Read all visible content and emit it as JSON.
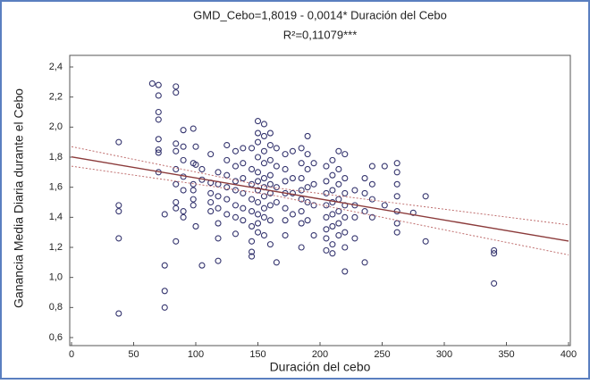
{
  "chart_data": {
    "type": "scatter",
    "title": "GMD_Cebo=1,8019 - 0,0014* Duración del Cebo",
    "subtitle": "R²=0,11079***",
    "x_label": "Duración del cebo",
    "y_label": "Ganancia Media Diaria durante el Cebo",
    "color": "#34346e",
    "fit_color": "#8b3a3a",
    "band_color": "#c07070",
    "xlim": [
      0,
      400
    ],
    "ylim": [
      0.6,
      2.4
    ],
    "xticks": [
      0,
      50,
      100,
      150,
      200,
      250,
      300,
      350,
      400
    ],
    "yticks": [
      {
        "value": 0.6,
        "label": "0,6"
      },
      {
        "value": 0.8,
        "label": "0,8"
      },
      {
        "value": 1.0,
        "label": "1,0"
      },
      {
        "value": 1.2,
        "label": "1,2"
      },
      {
        "value": 1.4,
        "label": "1,4"
      },
      {
        "value": 1.6,
        "label": "1,6"
      },
      {
        "value": 1.8,
        "label": "1,8"
      },
      {
        "value": 2.0,
        "label": "2,0"
      },
      {
        "value": 2.2,
        "label": "2,2"
      },
      {
        "value": 2.4,
        "label": "2,4"
      }
    ],
    "x": [
      38,
      38,
      38,
      38,
      38,
      65,
      70,
      70,
      70,
      70,
      70,
      70,
      70,
      70,
      75,
      75,
      75,
      75,
      84,
      84,
      84,
      84,
      84,
      84,
      84,
      84,
      84,
      90,
      90,
      90,
      90,
      90,
      90,
      90,
      98,
      98,
      98,
      98,
      98,
      98,
      100,
      100,
      100,
      105,
      105,
      105,
      112,
      112,
      112,
      112,
      112,
      118,
      118,
      118,
      118,
      118,
      118,
      118,
      125,
      125,
      125,
      125,
      125,
      125,
      132,
      132,
      132,
      132,
      132,
      132,
      132,
      138,
      138,
      138,
      138,
      138,
      138,
      145,
      145,
      145,
      145,
      145,
      145,
      145,
      145,
      145,
      150,
      150,
      150,
      150,
      150,
      150,
      150,
      150,
      150,
      150,
      150,
      155,
      155,
      155,
      155,
      155,
      155,
      155,
      155,
      155,
      155,
      160,
      160,
      160,
      160,
      160,
      160,
      160,
      160,
      160,
      165,
      165,
      165,
      165,
      165,
      172,
      172,
      172,
      172,
      172,
      172,
      172,
      178,
      178,
      178,
      178,
      185,
      185,
      185,
      185,
      185,
      185,
      185,
      185,
      190,
      190,
      190,
      190,
      190,
      190,
      195,
      195,
      195,
      195,
      205,
      205,
      205,
      205,
      205,
      205,
      205,
      205,
      210,
      210,
      210,
      210,
      210,
      210,
      210,
      210,
      215,
      215,
      215,
      215,
      215,
      215,
      215,
      220,
      220,
      220,
      220,
      220,
      220,
      220,
      220,
      228,
      228,
      228,
      228,
      236,
      236,
      236,
      236,
      242,
      242,
      242,
      242,
      252,
      252,
      262,
      262,
      262,
      262,
      262,
      262,
      262,
      275,
      285,
      285,
      340,
      340,
      340
    ],
    "values": [
      1.9,
      1.48,
      1.44,
      1.26,
      0.76,
      2.29,
      2.28,
      2.21,
      2.1,
      2.05,
      1.92,
      1.85,
      1.83,
      1.7,
      1.42,
      1.08,
      0.91,
      0.8,
      2.27,
      2.23,
      1.89,
      1.84,
      1.72,
      1.62,
      1.5,
      1.46,
      1.24,
      1.98,
      1.87,
      1.78,
      1.67,
      1.58,
      1.44,
      1.4,
      1.99,
      1.76,
      1.62,
      1.58,
      1.52,
      1.48,
      1.87,
      1.75,
      1.34,
      1.72,
      1.65,
      1.08,
      1.82,
      1.63,
      1.56,
      1.5,
      1.44,
      1.7,
      1.62,
      1.54,
      1.46,
      1.36,
      1.26,
      1.11,
      1.88,
      1.78,
      1.68,
      1.6,
      1.52,
      1.42,
      1.84,
      1.74,
      1.64,
      1.58,
      1.48,
      1.4,
      1.29,
      1.86,
      1.76,
      1.66,
      1.56,
      1.46,
      1.38,
      1.86,
      1.72,
      1.62,
      1.52,
      1.44,
      1.34,
      1.24,
      1.17,
      1.14,
      2.04,
      1.96,
      1.9,
      1.8,
      1.7,
      1.64,
      1.58,
      1.5,
      1.42,
      1.36,
      1.3,
      2.02,
      1.94,
      1.84,
      1.76,
      1.66,
      1.6,
      1.54,
      1.46,
      1.4,
      1.28,
      1.96,
      1.88,
      1.78,
      1.68,
      1.62,
      1.56,
      1.48,
      1.38,
      1.22,
      1.86,
      1.74,
      1.6,
      1.5,
      1.1,
      1.82,
      1.72,
      1.64,
      1.56,
      1.46,
      1.38,
      1.28,
      1.84,
      1.66,
      1.56,
      1.42,
      1.86,
      1.76,
      1.66,
      1.58,
      1.52,
      1.44,
      1.36,
      1.2,
      1.94,
      1.82,
      1.72,
      1.6,
      1.5,
      1.38,
      1.76,
      1.62,
      1.48,
      1.28,
      1.74,
      1.64,
      1.56,
      1.48,
      1.4,
      1.32,
      1.26,
      1.18,
      1.78,
      1.68,
      1.58,
      1.5,
      1.42,
      1.34,
      1.22,
      1.16,
      1.84,
      1.72,
      1.62,
      1.52,
      1.44,
      1.36,
      1.28,
      1.82,
      1.66,
      1.56,
      1.48,
      1.4,
      1.3,
      1.2,
      1.04,
      1.58,
      1.48,
      1.4,
      1.26,
      1.66,
      1.56,
      1.44,
      1.1,
      1.74,
      1.62,
      1.52,
      1.4,
      1.74,
      1.48,
      1.76,
      1.7,
      1.62,
      1.54,
      1.44,
      1.36,
      1.3,
      1.43,
      1.54,
      1.24,
      1.18,
      1.16,
      0.96
    ],
    "fit": {
      "x": [
        0,
        400
      ],
      "values": [
        1.8019,
        1.2419
      ]
    },
    "band_upper": {
      "x": [
        0,
        160,
        400
      ],
      "values": [
        1.87,
        1.6,
        1.35
      ]
    },
    "band_lower": {
      "x": [
        0,
        160,
        400
      ],
      "values": [
        1.74,
        1.55,
        1.15
      ]
    }
  }
}
